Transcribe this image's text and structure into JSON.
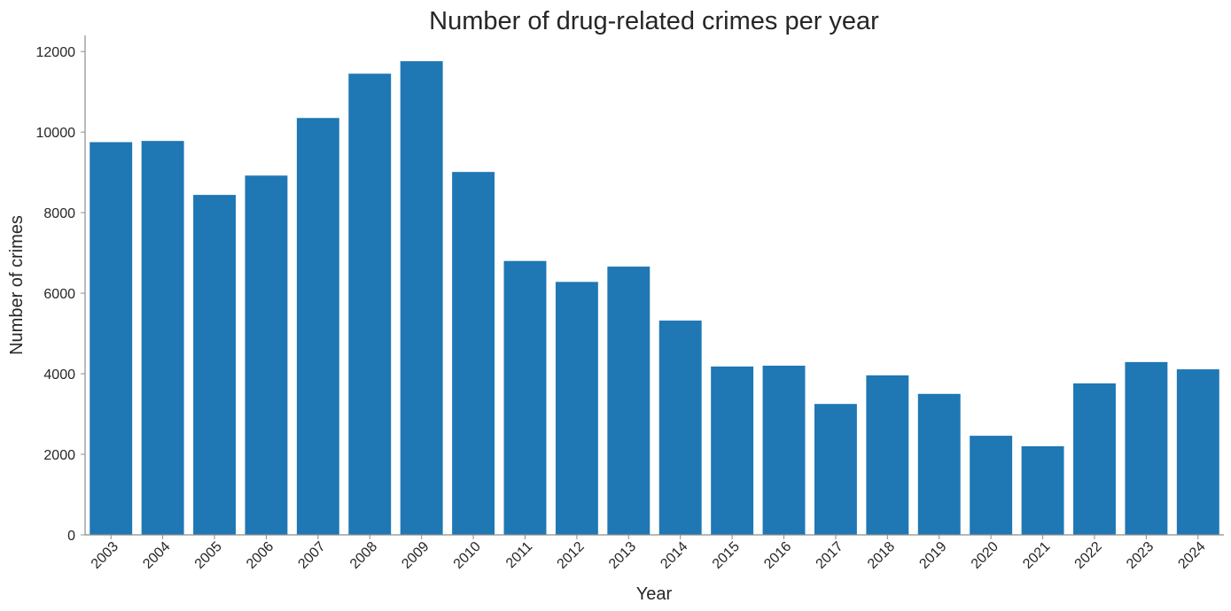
{
  "chart_data": {
    "type": "bar",
    "title": "Number of drug-related crimes per year",
    "xlabel": "Year",
    "ylabel": "Number of crimes",
    "categories": [
      "2003",
      "2004",
      "2005",
      "2006",
      "2007",
      "2008",
      "2009",
      "2010",
      "2011",
      "2012",
      "2013",
      "2014",
      "2015",
      "2016",
      "2017",
      "2018",
      "2019",
      "2020",
      "2021",
      "2022",
      "2023",
      "2024"
    ],
    "values": [
      9750,
      9780,
      8440,
      8920,
      10350,
      11450,
      11760,
      9010,
      6800,
      6280,
      6660,
      5320,
      4180,
      4200,
      3250,
      3960,
      3500,
      2460,
      2200,
      3760,
      4290,
      4110
    ],
    "ylim": [
      0,
      12400
    ],
    "yticks": [
      "0",
      "2000",
      "4000",
      "6000",
      "8000",
      "10000",
      "12000"
    ],
    "grid": false,
    "bar_color": "#1f77b4",
    "spine_color": "#8c8c8c",
    "text_color": "#262626"
  }
}
